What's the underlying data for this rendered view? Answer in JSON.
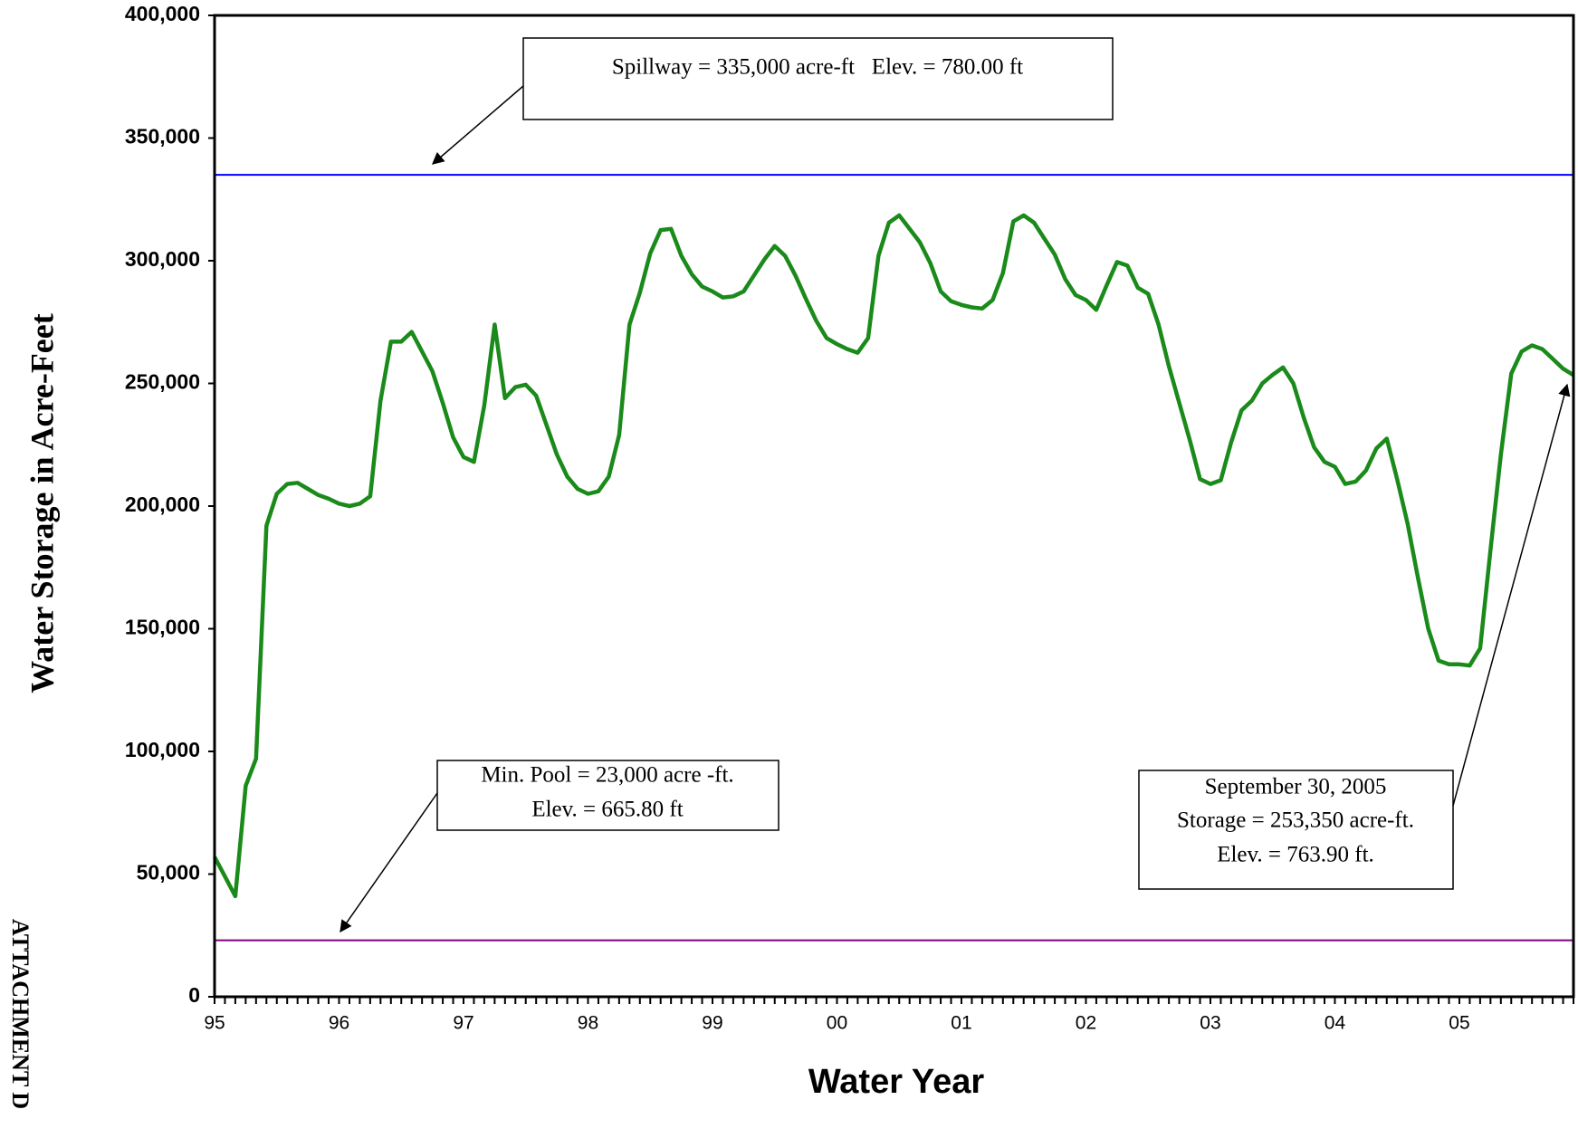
{
  "chart_data": {
    "type": "line",
    "x_label": "Water Year",
    "y_label": "Water Storage in Acre-Feet",
    "side_label": "ATTACHMENT D",
    "categories": [
      "95",
      null,
      null,
      null,
      null,
      null,
      null,
      null,
      null,
      null,
      null,
      null,
      "96",
      null,
      null,
      null,
      null,
      null,
      null,
      null,
      null,
      null,
      null,
      null,
      "97",
      null,
      null,
      null,
      null,
      null,
      null,
      null,
      null,
      null,
      null,
      null,
      "98",
      null,
      null,
      null,
      null,
      null,
      null,
      null,
      null,
      null,
      null,
      null,
      "99",
      null,
      null,
      null,
      null,
      null,
      null,
      null,
      null,
      null,
      null,
      null,
      "00",
      null,
      null,
      null,
      null,
      null,
      null,
      null,
      null,
      null,
      null,
      null,
      "01",
      null,
      null,
      null,
      null,
      null,
      null,
      null,
      null,
      null,
      null,
      null,
      "02",
      null,
      null,
      null,
      null,
      null,
      null,
      null,
      null,
      null,
      null,
      null,
      "03",
      null,
      null,
      null,
      null,
      null,
      null,
      null,
      null,
      null,
      null,
      null,
      "04",
      null,
      null,
      null,
      null,
      null,
      null,
      null,
      null,
      null,
      null,
      null,
      "05",
      null,
      null,
      null,
      null,
      null,
      null,
      null,
      null,
      null,
      null,
      null
    ],
    "series": [
      {
        "color": "#1a8a1a",
        "values": [
          57000,
          49000,
          41000,
          86000,
          97000,
          192000,
          205000,
          209000,
          209500,
          207000,
          204500,
          203000,
          201000,
          200000,
          201000,
          204000,
          243000,
          267000,
          267000,
          271000,
          263000,
          255000,
          242000,
          228000,
          220000,
          218000,
          241000,
          274000,
          244000,
          248500,
          249500,
          245000,
          233000,
          221000,
          212000,
          207000,
          205000,
          206000,
          212000,
          229000,
          274000,
          287000,
          303000,
          312500,
          313000,
          302000,
          294500,
          289500,
          287500,
          285000,
          285500,
          287500,
          294000,
          300500,
          306000,
          302000,
          294000,
          284500,
          275500,
          268500,
          266000,
          264000,
          262500,
          268500,
          302000,
          315500,
          318500,
          313000,
          307500,
          299000,
          287500,
          283500,
          282000,
          281000,
          280500,
          284000,
          295000,
          316000,
          318500,
          315500,
          309000,
          302500,
          292500,
          286000,
          284000,
          280000,
          290000,
          299500,
          298000,
          289000,
          286500,
          274000,
          257000,
          242000,
          227000,
          211000,
          209000,
          210500,
          226000,
          239000,
          243000,
          250000,
          253500,
          256500,
          250000,
          236000,
          224000,
          218000,
          216000,
          209000,
          210000,
          214500,
          223500,
          227500,
          211000,
          193000,
          171000,
          150000,
          137000,
          135500,
          135500,
          135000,
          142000,
          182000,
          221000,
          254000,
          263000,
          265500,
          264000,
          260000,
          256000,
          253350
        ]
      }
    ],
    "ylim": [
      0,
      400000
    ],
    "yticks": [
      0,
      {
        "value": 50000,
        "label": "50,000"
      },
      {
        "value": 100000,
        "label": "100,000"
      },
      {
        "value": 150000,
        "label": "150,000"
      },
      {
        "value": 200000,
        "label": "200,000"
      },
      {
        "value": 250000,
        "label": "250,000"
      },
      {
        "value": 300000,
        "label": "300,000"
      },
      {
        "value": 350000,
        "label": "350,000"
      },
      {
        "value": 400000,
        "label": "400,000"
      }
    ],
    "reference_lines": [
      {
        "value": 335000,
        "color": "#0000ff"
      },
      {
        "value": 23000,
        "color": "#800080"
      }
    ],
    "annotations": [
      {
        "lines": [
          "Spillway = 335,000 acre-ft   Elev. = 780.00 ft"
        ]
      },
      {
        "lines": [
          "Min. Pool = 23,000 acre -ft.",
          "Elev. = 665.80 ft"
        ]
      },
      {
        "lines": [
          "September 30, 2005",
          "Storage = 253,350 acre-ft.",
          "Elev. = 763.90 ft."
        ]
      }
    ]
  }
}
